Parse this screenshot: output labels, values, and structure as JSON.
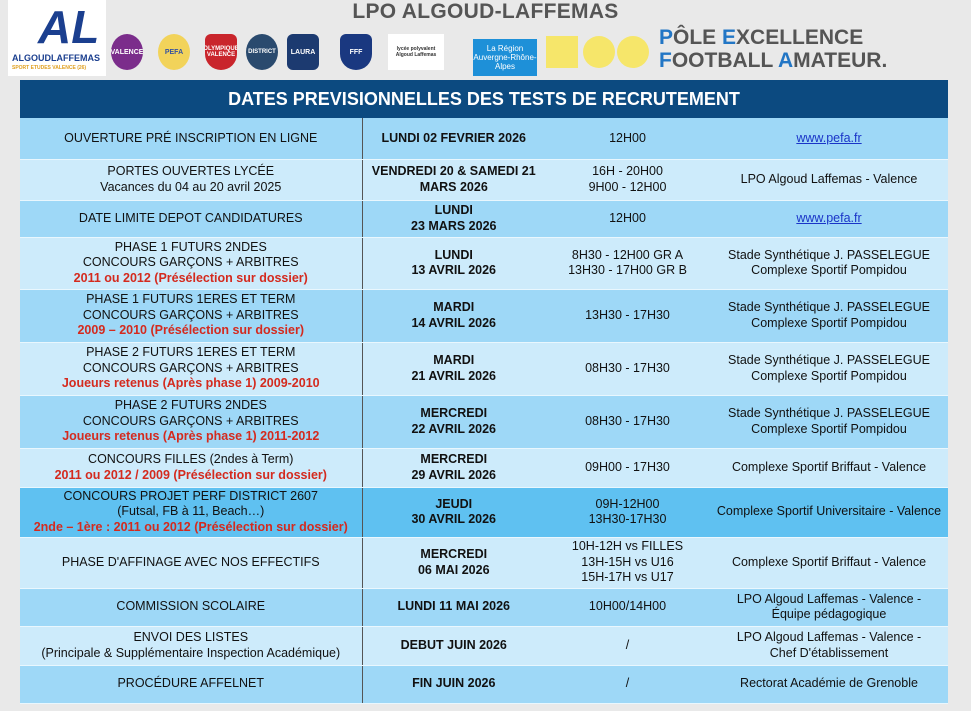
{
  "header": {
    "title": "LPO ALGOUD-LAFFEMAS",
    "logo": {
      "mark": "AL",
      "name": "ALGOUDLAFFEMAS",
      "sub": "SPORT ETUDES VALENCE (26)"
    },
    "partners": [
      "VALENCE",
      "PEFA",
      "OLYMPIQUE VALENCE",
      "DISTRICT",
      "LAURA",
      "FFF",
      "lycée polyvalent Algoud Laffemas",
      "La Région Auvergne-Rhône-Alpes"
    ],
    "pole_line1": [
      "P",
      "ÔLE ",
      "E",
      "XCELLENCE"
    ],
    "pole_line2": [
      "F",
      "OOTBALL ",
      "A",
      "MATEUR."
    ]
  },
  "banner": "DATES PREVISIONNELLES DES TESTS DE RECRUTEMENT",
  "colors": {
    "banner": "#0c4a80",
    "row_dark": "#9ed8f7",
    "row_light": "#cdebfb",
    "row_highlight": "#5fc1f1",
    "red": "#d42a1e"
  },
  "rows": [
    {
      "event": [
        "OUVERTURE PRÉ INSCRIPTION EN LIGNE"
      ],
      "date": [
        "LUNDI 02 FEVRIER 2026"
      ],
      "time": [
        "12H00"
      ],
      "place": [
        "www.pefa.fr"
      ]
    },
    {
      "event": [
        "PORTES OUVERTES LYCÉE",
        "Vacances du 04 au 20 avril 2025"
      ],
      "date": [
        "VENDREDI 20 & SAMEDI 21",
        "MARS 2026"
      ],
      "time": [
        "16H - 20H00",
        "9H00 - 12H00"
      ],
      "place": [
        "LPO Algoud Laffemas - Valence"
      ]
    },
    {
      "event": [
        "DATE LIMITE DEPOT CANDIDATURES"
      ],
      "date": [
        "LUNDI",
        "23 MARS 2026"
      ],
      "time": [
        "12H00"
      ],
      "place": [
        "www.pefa.fr"
      ]
    },
    {
      "event": [
        "PHASE 1 FUTURS 2NDES",
        "CONCOURS GARÇONS + ARBITRES"
      ],
      "red": "2011 ou 2012 (Présélection sur dossier)",
      "date": [
        "LUNDI",
        "13 AVRIL 2026"
      ],
      "time": [
        "8H30 - 12H00 GR A",
        "13H30 - 17H00 GR B"
      ],
      "place": [
        "Stade Synthétique J. PASSELEGUE",
        "Complexe Sportif Pompidou"
      ]
    },
    {
      "event": [
        "PHASE 1 FUTURS 1ERES ET TERM",
        "CONCOURS GARÇONS + ARBITRES"
      ],
      "red": "2009 – 2010 (Présélection sur dossier)",
      "date": [
        "MARDI",
        "14 AVRIL 2026"
      ],
      "time": [
        "13H30 - 17H30"
      ],
      "place": [
        "Stade Synthétique J. PASSELEGUE",
        "Complexe Sportif Pompidou"
      ]
    },
    {
      "event": [
        "PHASE 2 FUTURS 1ERES ET TERM",
        "CONCOURS GARÇONS + ARBITRES"
      ],
      "red": "Joueurs retenus (Après phase 1) 2009-2010",
      "date": [
        "MARDI",
        "21 AVRIL 2026"
      ],
      "time": [
        "08H30 - 17H30"
      ],
      "place": [
        "Stade Synthétique J. PASSELEGUE",
        "Complexe Sportif Pompidou"
      ]
    },
    {
      "event": [
        "PHASE 2 FUTURS 2NDES",
        "CONCOURS GARÇONS + ARBITRES"
      ],
      "red": "Joueurs retenus (Après phase 1) 2011-2012",
      "date": [
        "MERCREDI",
        "22 AVRIL 2026"
      ],
      "time": [
        "08H30 - 17H30"
      ],
      "place": [
        "Stade Synthétique J. PASSELEGUE",
        "Complexe Sportif Pompidou"
      ]
    },
    {
      "event": [
        "CONCOURS FILLES (2ndes à Term)"
      ],
      "red": "2011 ou 2012 / 2009  (Présélection sur dossier)",
      "date": [
        "MERCREDI",
        "29 AVRIL 2026"
      ],
      "time": [
        "09H00 - 17H30"
      ],
      "place": [
        "Complexe Sportif Briffaut - Valence"
      ]
    },
    {
      "event": [
        "CONCOURS PROJET PERF DISTRICT 2607",
        "(Futsal, FB à 11, Beach…)"
      ],
      "red": "2nde – 1ère : 2011 ou 2012 (Présélection sur dossier)",
      "date": [
        "JEUDI",
        "30 AVRIL 2026"
      ],
      "time": [
        "09H-12H00",
        "13H30-17H30"
      ],
      "place": [
        "Complexe Sportif Universitaire - Valence"
      ]
    },
    {
      "event": [
        "PHASE D'AFFINAGE AVEC NOS EFFECTIFS"
      ],
      "date": [
        "MERCREDI",
        "06 MAI 2026"
      ],
      "time": [
        "10H-12H vs FILLES",
        "13H-15H vs U16",
        "15H-17H vs U17"
      ],
      "place": [
        "Complexe Sportif Briffaut - Valence"
      ]
    },
    {
      "event": [
        "COMMISSION SCOLAIRE"
      ],
      "date": [
        "LUNDI 11 MAI 2026"
      ],
      "time": [
        "10H00/14H00"
      ],
      "place": [
        "LPO Algoud Laffemas - Valence -",
        "Équipe pédagogique"
      ]
    },
    {
      "event": [
        "ENVOI DES LISTES",
        "(Principale & Supplémentaire Inspection Académique)"
      ],
      "date": [
        "DEBUT JUIN 2026"
      ],
      "time": [
        "/"
      ],
      "place": [
        "LPO Algoud Laffemas - Valence -",
        "Chef D'établissement"
      ]
    },
    {
      "event": [
        "PROCÉDURE AFFELNET"
      ],
      "date": [
        "FIN JUIN 2026"
      ],
      "time": [
        "/"
      ],
      "place": [
        "Rectorat Académie de Grenoble"
      ]
    }
  ]
}
